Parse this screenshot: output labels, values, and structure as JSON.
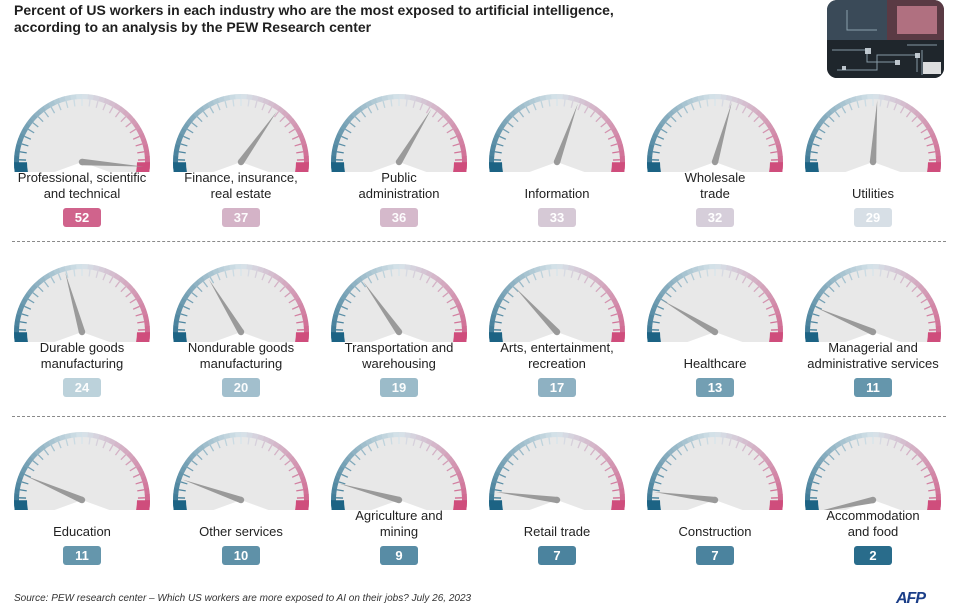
{
  "title_lines": [
    "Percent of US workers in each industry who are the most exposed to artificial intelligence,",
    "according to an analysis by the PEW Research center"
  ],
  "source": "Source: PEW research center – Which US workers are more exposed to AI on their jobs? July 26, 2023",
  "credit": "AFP",
  "colors": {
    "low": "#1c6384",
    "mid": "#d7e4ea",
    "high": "#cf4d7c",
    "gauge_face": "#e8e8e8",
    "needle": "#9a9a9a"
  },
  "chart_data": {
    "type": "gauge",
    "scale_range": [
      0,
      56
    ],
    "unit": "percent",
    "items": [
      {
        "label_lines": [
          "Professional, scientific",
          "and technical"
        ],
        "value": 52,
        "display": "52"
      },
      {
        "label_lines": [
          "Finance, insurance,",
          "real estate"
        ],
        "value": 37,
        "display": "37"
      },
      {
        "label_lines": [
          "Public",
          "administration"
        ],
        "value": 36,
        "display": "36"
      },
      {
        "label_lines": [
          "Information"
        ],
        "value": 33,
        "display": "33"
      },
      {
        "label_lines": [
          "Wholesale",
          "trade"
        ],
        "value": 32,
        "display": "32"
      },
      {
        "label_lines": [
          "Utilities"
        ],
        "value": 29,
        "display": "29"
      },
      {
        "label_lines": [
          "Durable goods",
          "manufacturing"
        ],
        "value": 24,
        "display": "24"
      },
      {
        "label_lines": [
          "Nondurable goods",
          "manufacturing"
        ],
        "value": 20,
        "display": "20"
      },
      {
        "label_lines": [
          "Transportation and",
          "warehousing"
        ],
        "value": 19,
        "display": "19"
      },
      {
        "label_lines": [
          "Arts, entertainment,",
          "recreation"
        ],
        "value": 17,
        "display": "17"
      },
      {
        "label_lines": [
          "Healthcare"
        ],
        "value": 13,
        "display": "13"
      },
      {
        "label_lines": [
          "Managerial and",
          "administrative services"
        ],
        "value": 11,
        "display": "11"
      },
      {
        "label_lines": [
          "Education"
        ],
        "value": 11,
        "display": "11"
      },
      {
        "label_lines": [
          "Other services"
        ],
        "value": 10,
        "display": "10"
      },
      {
        "label_lines": [
          "Agriculture and",
          "mining"
        ],
        "value": 9,
        "display": "9"
      },
      {
        "label_lines": [
          "Retail trade"
        ],
        "value": 7,
        "display": "7"
      },
      {
        "label_lines": [
          "Construction"
        ],
        "value": 7,
        "display": "7"
      },
      {
        "label_lines": [
          "Accommodation",
          "and food"
        ],
        "value": 2,
        "display": "2"
      }
    ]
  }
}
